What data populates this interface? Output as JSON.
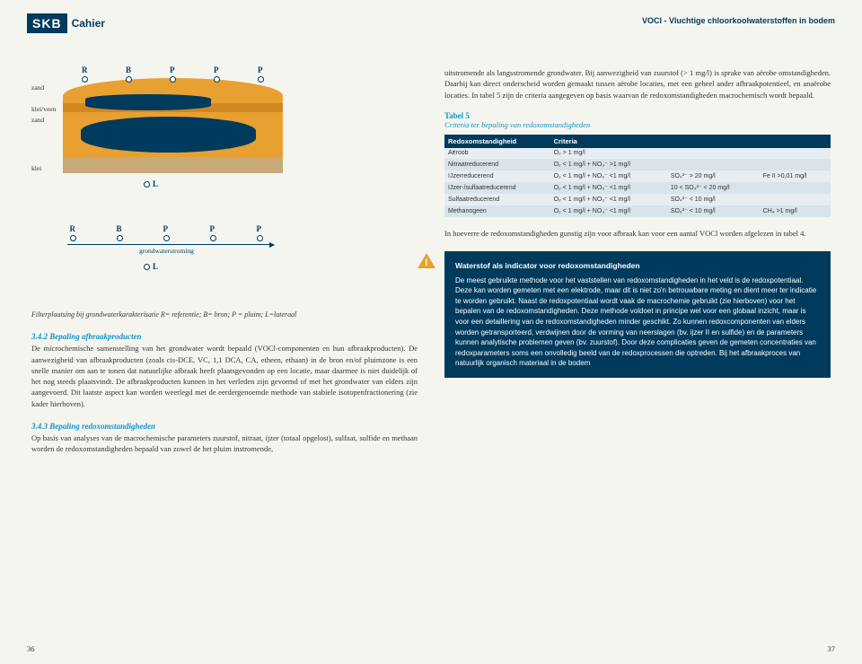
{
  "header": {
    "logo": "SKB",
    "cahier": "Cahier",
    "right_title": "VOCI - Vluchtige chloorkoolwaterstoffen in bodem"
  },
  "left": {
    "diagram1": {
      "markers": [
        "R",
        "B",
        "P",
        "P",
        "P"
      ],
      "strata": [
        "zand",
        "klei/veen",
        "zand",
        "klei"
      ],
      "L": "L",
      "layer_colors": {
        "zand": "#e8a030",
        "klei_veen": "#e8a030",
        "klei": "#c9a97a"
      },
      "plume_color": "#003a5c"
    },
    "diagram2": {
      "markers": [
        "R",
        "B",
        "P",
        "P",
        "P"
      ],
      "flow_label": "grondwaterstroming",
      "L": "L"
    },
    "caption": "Filterplaatsing bij grondwaterkarakterisatie\nR= referentie; B= bron; P = pluim; L=lateraal",
    "sec_342_title": "3.4.2  Bepaling afbraakproducten",
    "sec_342_body": "De microchemische samenstelling van het grondwater wordt bepaald (VOCl-componenten en hun afbraakproducten). De aanwezigheid van afbraakproducten (zoals cis-DCE, VC, 1,1 DCA, CA, etheen, ethaan) in de bron en/of pluimzone is een snelle manier om aan te tonen dat natuurlijke afbraak heeft plaatsgevonden op een locatie, maar daarmee is niet duidelijk of het nog steeds plaatsvindt. De afbraakproducten kunnen in het verleden zijn gevormd of met het grondwater van elders zijn aangevoerd. Dit laatste aspect kan worden weerlegd met de eerdergenoemde methode van stabiele isotopenfractionering (zie kader hierboven).",
    "sec_343_title": "3.4.3  Bepaling redoxomstandigheden",
    "sec_343_body": "Op basis van analyses van de macrochemische parameters zuurstof, nitraat, ijzer (totaal opgelost), sulfaat, sulfide en methaan worden de redoxomstandigheden bepaald van zowel de het pluim instromende,",
    "page_num": "36"
  },
  "right": {
    "intro": "uitstromende als langsstromende grondwater. Bij aanwezigheid van zuurstof (> 1 mg/l) is sprake van aërobe omstandigheden. Daarbij kan direct onderscheid worden gemaakt tussen aërobe locaties, met een geheel ander afbraakpotentieel, en anaërobe locaties. In tabel 5 zijn de criteria aangegeven op basis waarvan de redoxomstandigheden macrochemisch wordt bepaald.",
    "table_title": "Tabel 5",
    "table_subtitle": "Criteria ter bepaling van redoxomstandigheden",
    "table": {
      "head": [
        "Redoxomstandigheid",
        "Criteria",
        "",
        ""
      ],
      "rows": [
        [
          "Aëroob",
          "O₂ > 1 mg/l",
          "",
          ""
        ],
        [
          "Nitraatreducerend",
          "O₂ < 1 mg/l + NO₃⁻ >1 mg/l",
          "",
          ""
        ],
        [
          "IJzerreducerend",
          "O₂ < 1 mg/l + NO₃⁻ <1 mg/l",
          "SO₄²⁻ > 20 mg/l",
          "Fe II >0,01 mg/l"
        ],
        [
          "IJzer-/sulfaatreducerend",
          "O₂ < 1 mg/l + NO₃⁻ <1 mg/l",
          "10 < SO₄²⁻ < 20 mg/l",
          ""
        ],
        [
          "Sulfaatreducerend",
          "O₂ < 1 mg/l + NO₃⁻ <1 mg/l",
          "SO₄²⁻ < 10 mg/l",
          ""
        ],
        [
          "Methanogeen",
          "O₂ < 1 mg/l + NO₃⁻ <1 mg/l",
          "SO₄²⁻ < 10 mg/l",
          "CH₄ >1 mg/l"
        ]
      ]
    },
    "after_table": "In hoeverre de redoxomstandigheden gunstig zijn voor afbraak kan voor een aantal VOCl worden afgelezen in tabel 4.",
    "infobox": {
      "title": "Waterstof als indicator voor redoxomstandigheden",
      "body": "De meest gebruikte methode voor het vaststellen van redoxomstandigheden in het veld is de redoxpotentiaal. Deze kan worden gemeten met een elektrode, maar dit is niet zo'n betrouwbare meting en dient meer ter indicatie te worden gebruikt. Naast de redoxpotentiaal wordt vaak de macrochemie gebruikt (zie hierboven) voor het bepalen van de redoxomstandigheden. Deze methode voldoet in principe wel voor een globaal inzicht, maar is voor een detaillering van de redoxomstandigheden minder geschikt. Zo kunnen redoxcomponenten van elders worden getransporteerd, verdwijnen door de vorming van neerslagen (bv. ijzer II en sulfide) en de parameters kunnen analytische problemen geven (bv. zuurstof). Door deze complicaties geven de gemeten concentraties van redoxparameters soms een onvolledig beeld van de redoxprocessen die optreden.\nBij het afbraakproces van natuurlijk organisch materiaal in de bodem"
    },
    "page_num": "37"
  }
}
